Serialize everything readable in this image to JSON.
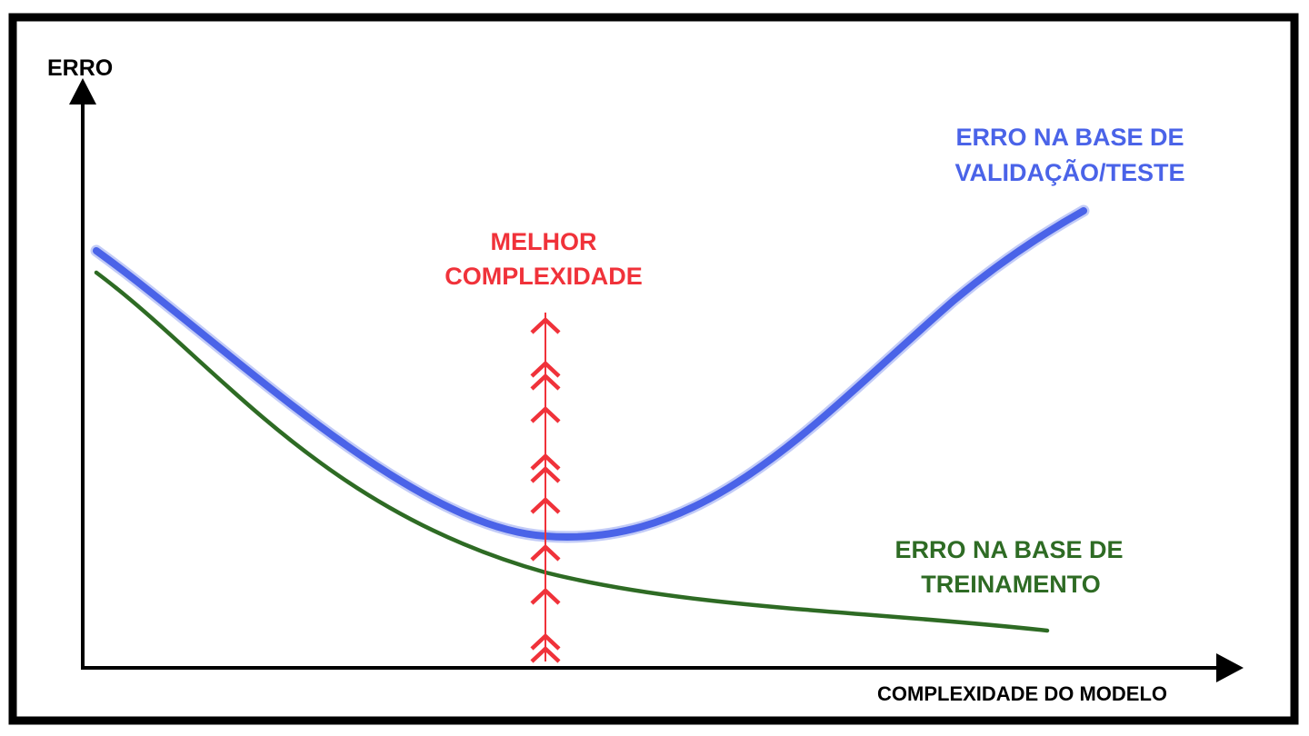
{
  "axes": {
    "y_label": "ERRO",
    "x_label": "COMPLEXIDADE DO MODELO"
  },
  "curves": {
    "validation": {
      "label_line1": "ERRO NA BASE DE",
      "label_line2": "VALIDAÇÃO/TESTE",
      "color": "#4a63e8"
    },
    "training": {
      "label_line1": "ERRO NA BASE DE",
      "label_line2": "TREINAMENTO",
      "color": "#2e6b24"
    }
  },
  "best_complexity": {
    "label_line1": "MELHOR",
    "label_line2": "COMPLEXIDADE",
    "color": "#f0323a",
    "marker_icon": "double-chevron-up-icon"
  },
  "frame_color": "#000000"
}
